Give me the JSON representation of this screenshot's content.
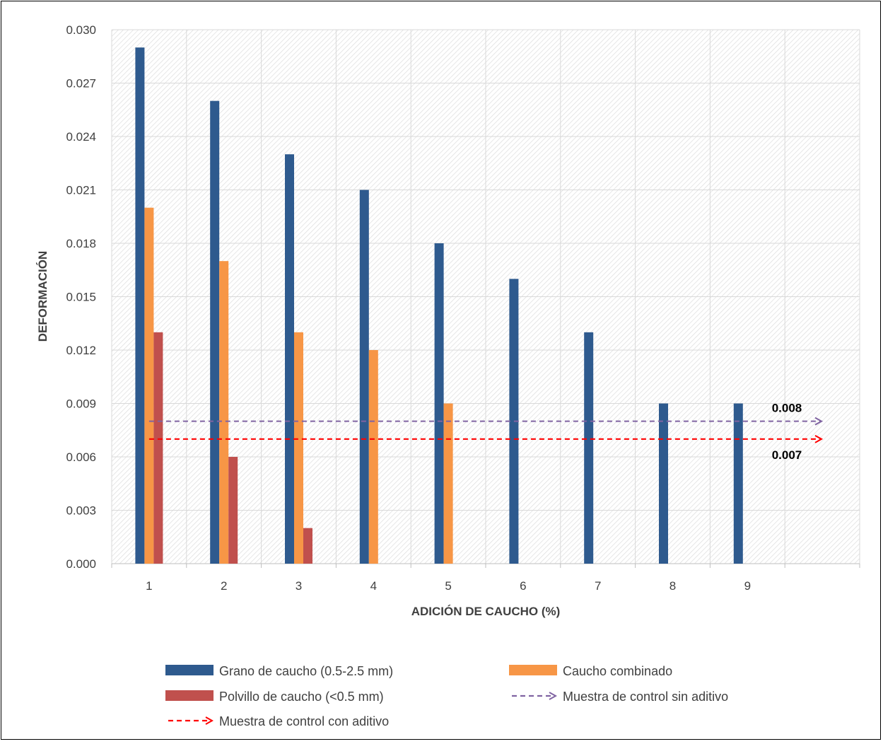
{
  "chart_data": {
    "type": "bar",
    "title": "",
    "xlabel": "ADICIÓN DE CAUCHO (%)",
    "ylabel": "DEFORMACIÓN",
    "categories": [
      "1",
      "2",
      "3",
      "4",
      "5",
      "6",
      "7",
      "8",
      "9"
    ],
    "ylim": [
      0,
      0.03
    ],
    "yticks": [
      "0.000",
      "0.003",
      "0.006",
      "0.009",
      "0.012",
      "0.015",
      "0.018",
      "0.021",
      "0.024",
      "0.027",
      "0.030"
    ],
    "grid": true,
    "legend_position": "bottom",
    "series": [
      {
        "name": "Grano de caucho (0.5-2.5 mm)",
        "color": "#2e5a8e",
        "values": [
          0.029,
          0.026,
          0.023,
          0.021,
          0.018,
          0.016,
          0.013,
          0.009,
          0.009
        ]
      },
      {
        "name": "Caucho combinado",
        "color": "#f79646",
        "values": [
          0.02,
          0.017,
          0.013,
          0.012,
          0.009,
          null,
          null,
          null,
          null
        ]
      },
      {
        "name": "Polvillo de caucho (<0.5 mm)",
        "color": "#c0504d",
        "values": [
          0.013,
          0.006,
          0.002,
          null,
          null,
          null,
          null,
          null,
          null
        ]
      }
    ],
    "reference_lines": [
      {
        "name": "Muestra de control sin aditivo",
        "value": 0.008,
        "label": "0.008",
        "color": "#8064a2"
      },
      {
        "name": "Muestra de control con aditivo",
        "value": 0.007,
        "label": "0.007",
        "color": "#ff0000"
      }
    ]
  }
}
